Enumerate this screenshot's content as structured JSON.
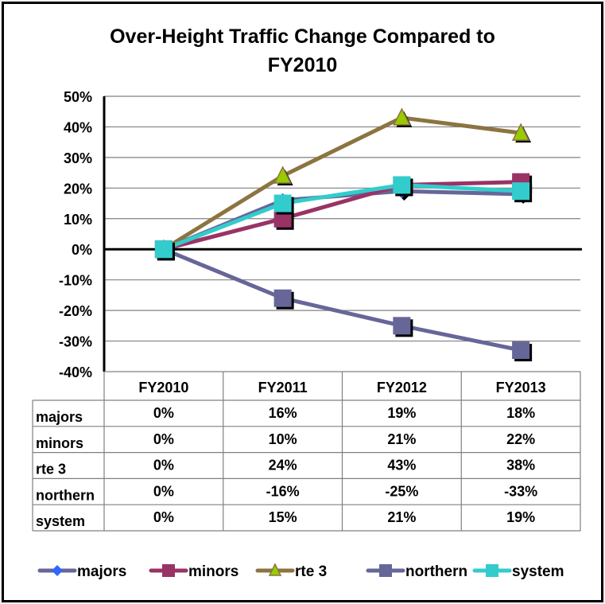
{
  "chart_data": {
    "type": "line",
    "title_line1": "Over-Height Traffic Change Compared to",
    "title_line2": "FY2010",
    "xlabel": "",
    "ylabel": "",
    "categories": [
      "FY2010",
      "FY2011",
      "FY2012",
      "FY2013"
    ],
    "ylim": [
      -40,
      50
    ],
    "yticks": [
      50,
      40,
      30,
      20,
      10,
      0,
      -10,
      -20,
      -30,
      -40
    ],
    "ytick_labels": [
      "50%",
      "40%",
      "30%",
      "20%",
      "10%",
      "0%",
      "-10%",
      "-20%",
      "-30%",
      "-40%"
    ],
    "grid": true,
    "legend_position": "bottom",
    "data_table": true,
    "series": [
      {
        "name": "majors",
        "values": [
          0,
          16,
          19,
          18
        ],
        "labels": [
          "0%",
          "16%",
          "19%",
          "18%"
        ],
        "line_color": "#666699",
        "marker": "diamond",
        "marker_color": "#3366FF"
      },
      {
        "name": "minors",
        "values": [
          0,
          10,
          21,
          22
        ],
        "labels": [
          "0%",
          "10%",
          "21%",
          "22%"
        ],
        "line_color": "#993366",
        "marker": "square",
        "marker_color": "#993366"
      },
      {
        "name": "rte 3",
        "values": [
          0,
          24,
          43,
          38
        ],
        "labels": [
          "0%",
          "24%",
          "43%",
          "38%"
        ],
        "line_color": "#8C7440",
        "marker": "triangle",
        "marker_color": "#99CC00"
      },
      {
        "name": "northern",
        "values": [
          0,
          -16,
          -25,
          -33
        ],
        "labels": [
          "0%",
          "-16%",
          "-25%",
          "-33%"
        ],
        "line_color": "#666699",
        "marker": "square",
        "marker_color": "#666699"
      },
      {
        "name": "system",
        "values": [
          0,
          15,
          21,
          19
        ],
        "labels": [
          "0%",
          "15%",
          "21%",
          "19%"
        ],
        "line_color": "#33CCCC",
        "marker": "square",
        "marker_color": "#33CCCC"
      }
    ]
  }
}
